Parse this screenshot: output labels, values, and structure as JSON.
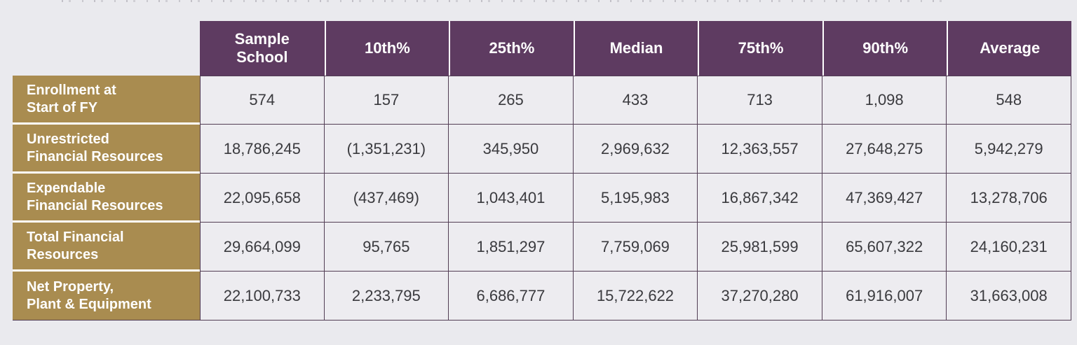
{
  "table": {
    "header": [
      "Sample School",
      "10th%",
      "25th%",
      "Median",
      "75th%",
      "90th%",
      "Average"
    ],
    "rows": [
      {
        "label_line1": "Enrollment at",
        "label_line2": "Start of FY",
        "values": [
          "574",
          "157",
          "265",
          "433",
          "713",
          "1,098",
          "548"
        ]
      },
      {
        "label_line1": "Unrestricted",
        "label_line2": "Financial Resources",
        "values": [
          "18,786,245",
          "(1,351,231)",
          "345,950",
          "2,969,632",
          "12,363,557",
          "27,648,275",
          "5,942,279"
        ]
      },
      {
        "label_line1": "Expendable",
        "label_line2": "Financial Resources",
        "values": [
          "22,095,658",
          "(437,469)",
          "1,043,401",
          "5,195,983",
          "16,867,342",
          "47,369,427",
          "13,278,706"
        ]
      },
      {
        "label_line1": "Total Financial",
        "label_line2": "Resources",
        "values": [
          "29,664,099",
          "95,765",
          "1,851,297",
          "7,759,069",
          "25,981,599",
          "65,607,322",
          "24,160,231"
        ]
      },
      {
        "label_line1": "Net Property,",
        "label_line2": "Plant & Equipment",
        "values": [
          "22,100,733",
          "2,233,795",
          "6,686,777",
          "15,722,622",
          "37,270,280",
          "61,916,007",
          "31,663,008"
        ]
      }
    ],
    "colors": {
      "header_bg": "#5e3b61",
      "row_label_bg": "#a98c50",
      "cell_bg": "#edecf0",
      "border": "#523d54",
      "page_bg": "#eaeaee",
      "header_text": "#ffffff",
      "cell_text": "#3a3a3e"
    }
  }
}
